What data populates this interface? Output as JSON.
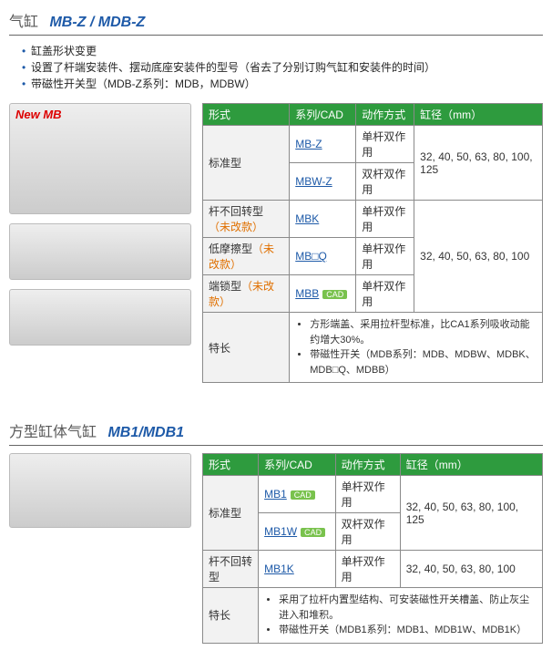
{
  "s1": {
    "titleA": "气缸",
    "titleB": "MB-Z / MDB-Z",
    "bullets": [
      "缸盖形状变更",
      "设置了杆端安装件、摆动底座安装件的型号（省去了分别订购气缸和安装件的时间）",
      "带磁性开关型（MDB-Z系列：MDB，MDBW）"
    ],
    "newmb": "New MB",
    "hdr": [
      "形式",
      "系列/CAD",
      "动作方式",
      "缸径（mm）"
    ],
    "r1": {
      "form": "标准型",
      "s": "MB-Z",
      "act": "单杆双作用",
      "bore": "32, 40, 50, 63, 80, 100, 125"
    },
    "r2": {
      "s": "MBW-Z",
      "act": "双杆双作用"
    },
    "r3": {
      "formA": "杆不回转型",
      "formB": "（未改款）",
      "s": "MBK",
      "act": "单杆双作用",
      "bore": "32, 40, 50, 63, 80, 100"
    },
    "r4": {
      "formA": "低摩擦型",
      "formB": "（未改款）",
      "s": "MB□Q",
      "act": "单杆双作用"
    },
    "r5": {
      "formA": "端锁型",
      "formB": "（未改款）",
      "s": "MBB",
      "cad": "CAD",
      "act": "单杆双作用"
    },
    "featLabel": "特长",
    "feat1": "方形端盖、采用拉杆型标准，比CA1系列吸收动能约增大30%。",
    "feat2": "带磁性开关（MDB系列：MDB、MDBW、MDBK、MDB□Q、MDBB）"
  },
  "s2": {
    "titleA": "方型缸体气缸",
    "titleB": "MB1/MDB1",
    "hdr": [
      "形式",
      "系列/CAD",
      "动作方式",
      "缸径（mm）"
    ],
    "r1": {
      "form": "标准型",
      "s": "MB1",
      "cad": "CAD",
      "act": "单杆双作用",
      "bore": "32, 40, 50, 63, 80, 100, 125"
    },
    "r2": {
      "s": "MB1W",
      "cad": "CAD",
      "act": "双杆双作用"
    },
    "r3": {
      "form": "杆不回转型",
      "s": "MB1K",
      "act": "单杆双作用",
      "bore": "32, 40, 50, 63, 80, 100"
    },
    "featLabel": "特长",
    "feat1": "采用了拉杆内置型结构、可安装磁性开关槽盖、防止灰尘进入和堆积。",
    "feat2": "带磁性开关（MDB1系列：MDB1、MDB1W、MDB1K）"
  }
}
